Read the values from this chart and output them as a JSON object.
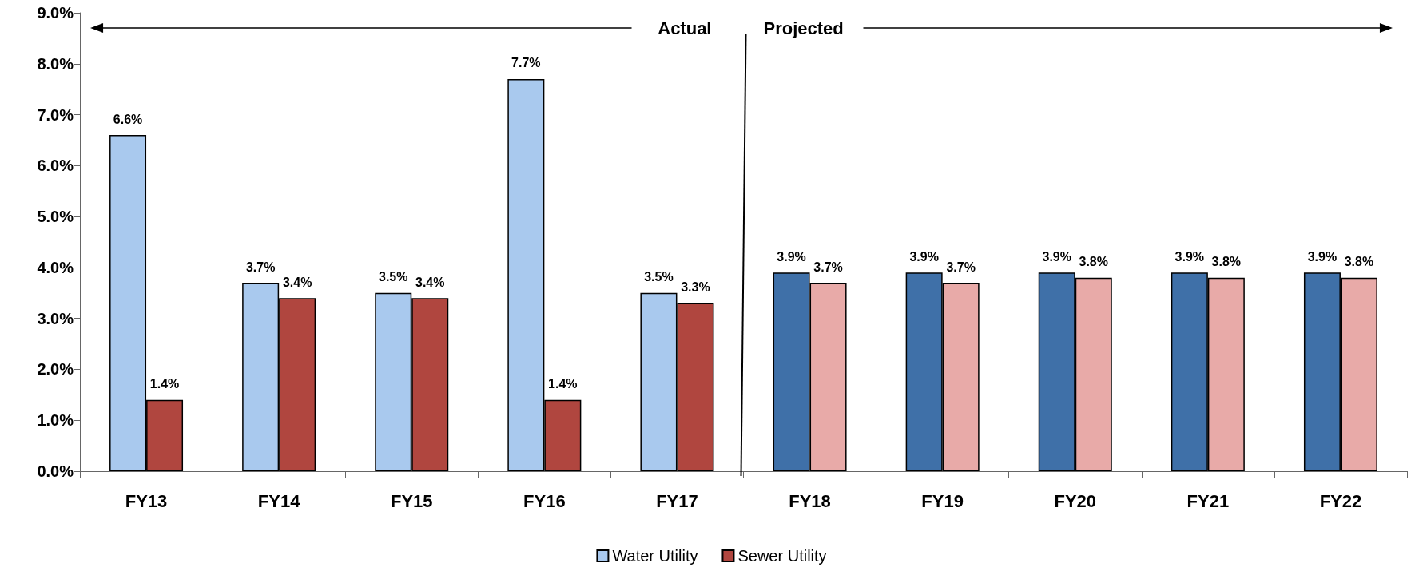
{
  "chart_data": {
    "type": "bar",
    "categories": [
      "FY13",
      "FY14",
      "FY15",
      "FY16",
      "FY17",
      "FY18",
      "FY19",
      "FY20",
      "FY21",
      "FY22"
    ],
    "series": [
      {
        "name": "Water Utility",
        "color": "#a9c9ee",
        "colors": [
          "#a9c9ee",
          "#a9c9ee",
          "#a9c9ee",
          "#a9c9ee",
          "#a9c9ee",
          "#3f70a8",
          "#3f70a8",
          "#3f70a8",
          "#3f70a8",
          "#3f70a8"
        ],
        "values": [
          6.6,
          3.7,
          3.5,
          7.7,
          3.5,
          3.9,
          3.9,
          3.9,
          3.9,
          3.9
        ],
        "value_labels": [
          "6.6%",
          "3.7%",
          "3.5%",
          "7.7%",
          "3.5%",
          "3.9%",
          "3.9%",
          "3.9%",
          "3.9%",
          "3.9%"
        ]
      },
      {
        "name": "Sewer Utility",
        "color": "#b0463f",
        "colors": [
          "#b0463f",
          "#b0463f",
          "#b0463f",
          "#b0463f",
          "#b0463f",
          "#e8aaa8",
          "#e8aaa8",
          "#e8aaa8",
          "#e8aaa8",
          "#e8aaa8"
        ],
        "values": [
          1.4,
          3.4,
          3.4,
          1.4,
          3.3,
          3.7,
          3.7,
          3.8,
          3.8,
          3.8
        ],
        "value_labels": [
          "1.4%",
          "3.4%",
          "3.4%",
          "1.4%",
          "3.3%",
          "3.7%",
          "3.7%",
          "3.8%",
          "3.8%",
          "3.8%"
        ]
      }
    ],
    "ylim": [
      0,
      9
    ],
    "yticks": [
      {
        "value": 0,
        "label": "0.0%"
      },
      {
        "value": 1,
        "label": "1.0%"
      },
      {
        "value": 2,
        "label": "2.0%"
      },
      {
        "value": 3,
        "label": "3.0%"
      },
      {
        "value": 4,
        "label": "4.0%"
      },
      {
        "value": 5,
        "label": "5.0%"
      },
      {
        "value": 6,
        "label": "6.0%"
      },
      {
        "value": 7,
        "label": "7.0%"
      },
      {
        "value": 8,
        "label": "8.0%"
      },
      {
        "value": 9,
        "label": "9.0%"
      }
    ],
    "grid": false,
    "legend": "bottom",
    "annotations": [
      "Actual",
      "Projected"
    ]
  }
}
